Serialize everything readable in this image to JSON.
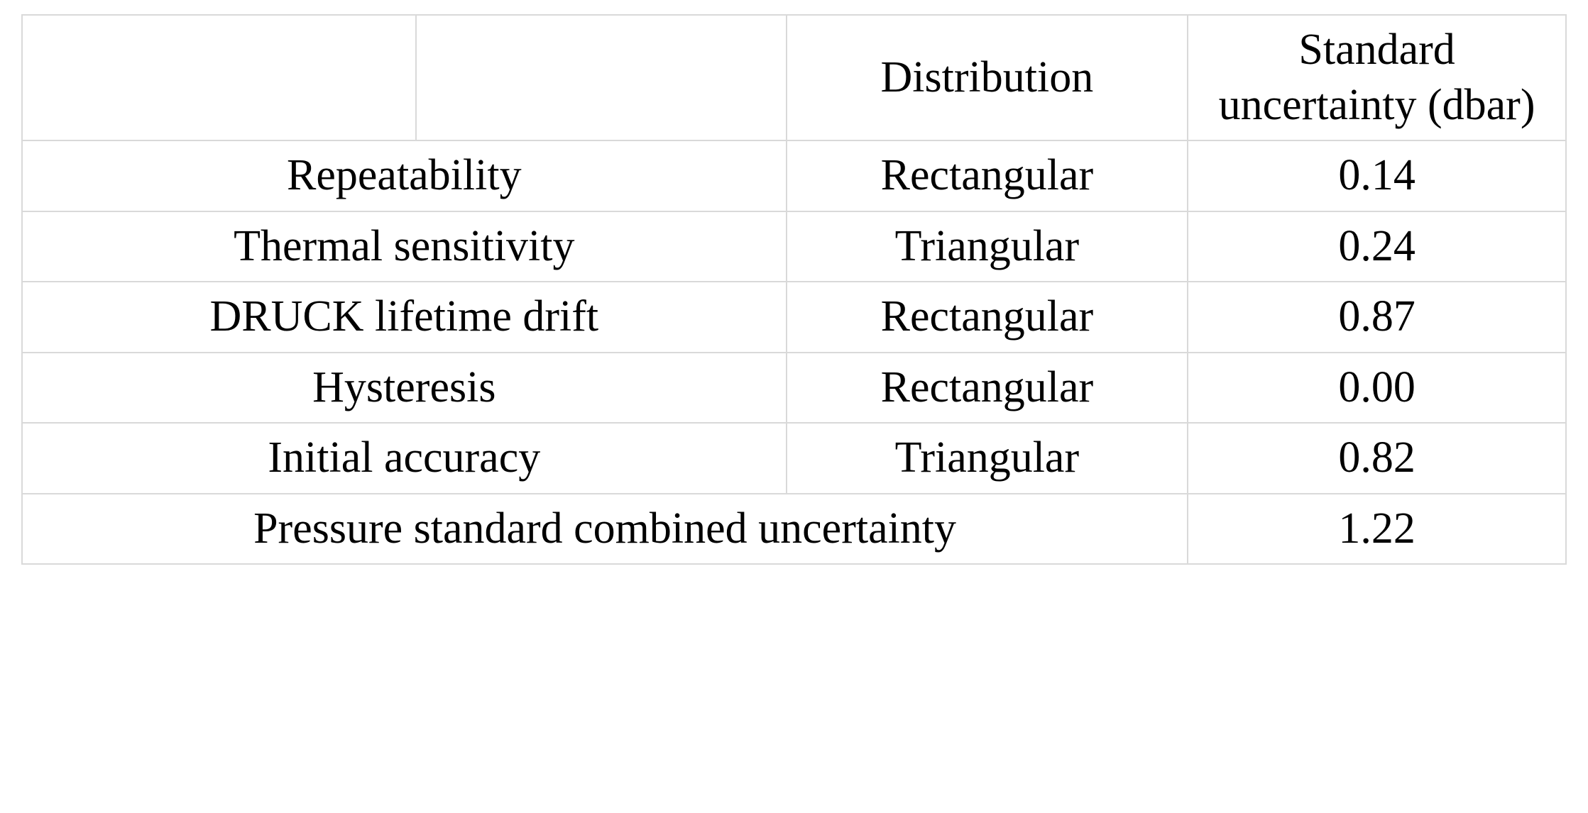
{
  "table": {
    "type": "table",
    "border_color": "#d9d9d9",
    "background_color": "#ffffff",
    "text_color": "#000000",
    "font_family": "Palatino Linotype",
    "header_fontsize_pt": 46,
    "body_fontsize_pt": 46,
    "columns": [
      {
        "key": "blank1",
        "label": "",
        "width_pct": 25.5,
        "align": "center",
        "header_bold": true
      },
      {
        "key": "blank2",
        "label": "",
        "width_pct": 24.0,
        "align": "center",
        "header_bold": true
      },
      {
        "key": "distribution",
        "label": "Distribution",
        "width_pct": 26.0,
        "align": "center",
        "header_bold": true
      },
      {
        "key": "std_uncertainty",
        "label": "Standard uncertainty (dbar)",
        "width_pct": 24.5,
        "align": "center",
        "header_bold": true
      }
    ],
    "rows": [
      {
        "label": "Repeatability",
        "distribution": "Rectangular",
        "value": "0.14"
      },
      {
        "label": "Thermal sensitivity",
        "distribution": "Triangular",
        "value": "0.24"
      },
      {
        "label": "DRUCK lifetime drift",
        "distribution": "Rectangular",
        "value": "0.87"
      },
      {
        "label": "Hysteresis",
        "distribution": "Rectangular",
        "value": "0.00"
      },
      {
        "label": "Initial accuracy",
        "distribution": "Triangular",
        "value": "0.82"
      }
    ],
    "footer": {
      "label": "Pressure standard combined uncertainty",
      "value": "1.22"
    }
  }
}
